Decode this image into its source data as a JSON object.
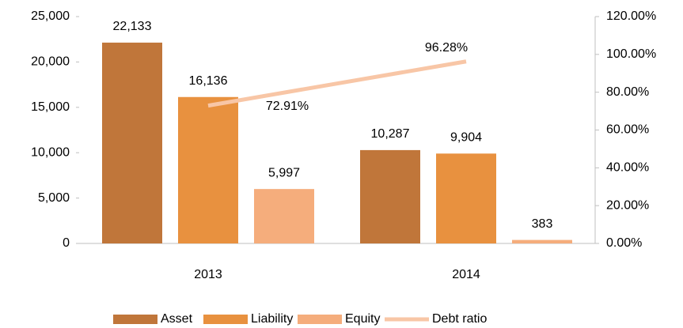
{
  "chart_data": {
    "type": "bar",
    "categories": [
      "2013",
      "2014"
    ],
    "series": [
      {
        "name": "Asset",
        "color": "#c0763a",
        "values": [
          22133,
          10287
        ],
        "value_labels": [
          "22,133",
          "10,287"
        ]
      },
      {
        "name": "Liability",
        "color": "#e8913f",
        "values": [
          16136,
          9904
        ],
        "value_labels": [
          "16,136",
          "9,904"
        ]
      },
      {
        "name": "Equity",
        "color": "#f5ad7c",
        "values": [
          5997,
          383
        ],
        "value_labels": [
          "5,997",
          "383"
        ]
      },
      {
        "name": "Debt ratio",
        "color": "#f8c6a6",
        "type": "line",
        "axis": "y2",
        "values": [
          72.91,
          96.28
        ],
        "value_labels": [
          "72.91%",
          "96.28%"
        ]
      }
    ],
    "ylim": [
      0,
      25000
    ],
    "yticks": [
      0,
      {
        "value": 5000,
        "label": "5,000"
      },
      {
        "value": 10000,
        "label": "10,000"
      },
      {
        "value": 15000,
        "label": "15,000"
      },
      {
        "value": 20000,
        "label": "20,000"
      },
      {
        "value": 25000,
        "label": "25,000"
      }
    ],
    "y2lim": [
      0,
      120
    ],
    "y2ticks": [
      {
        "value": 0,
        "label": "0.00%"
      },
      {
        "value": 20,
        "label": "20.00%"
      },
      {
        "value": 40,
        "label": "40.00%"
      },
      {
        "value": 60,
        "label": "60.00%"
      },
      {
        "value": 80,
        "label": "80.00%"
      },
      {
        "value": 100,
        "label": "100.00%"
      },
      {
        "value": 120,
        "label": "120.00%"
      }
    ],
    "legend": "bottom"
  }
}
